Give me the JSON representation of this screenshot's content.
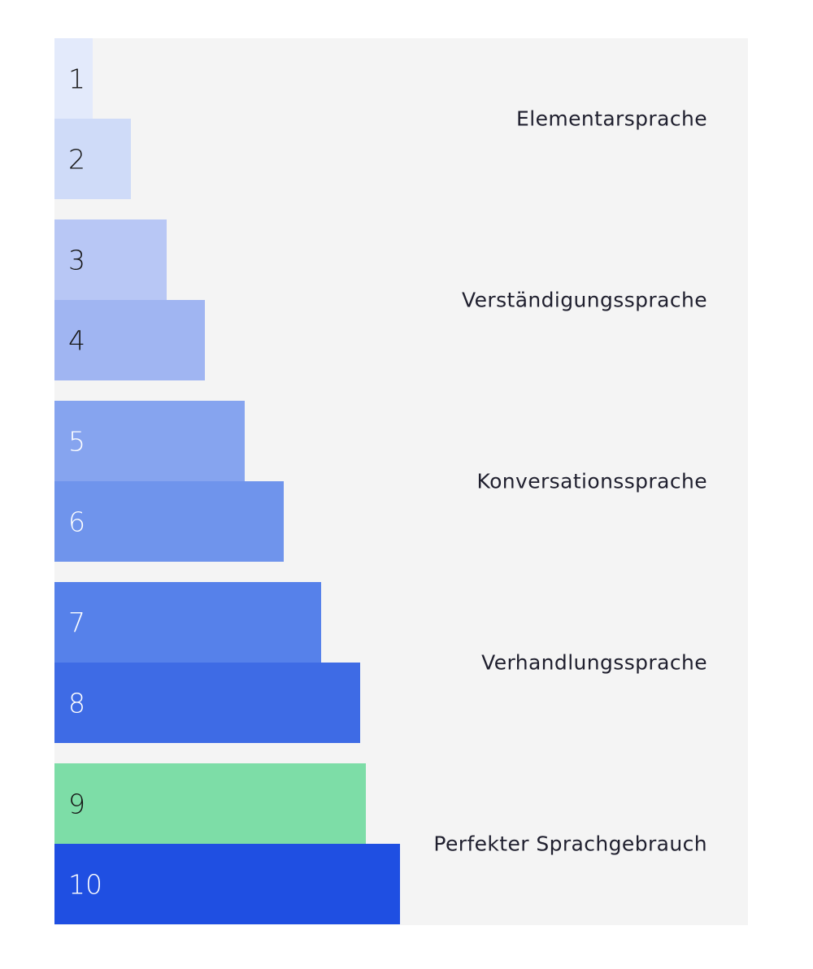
{
  "levels": [
    {
      "number": "1",
      "color": "#e3eafb",
      "text_color": "#161616"
    },
    {
      "number": "2",
      "color": "#cfdbf8",
      "text_color": "#161616"
    },
    {
      "number": "3",
      "color": "#b8c7f5",
      "text_color": "#161616"
    },
    {
      "number": "4",
      "color": "#a0b5f2",
      "text_color": "#161616"
    },
    {
      "number": "5",
      "color": "#86a4ef",
      "text_color": "#ffffff"
    },
    {
      "number": "6",
      "color": "#6f94ec",
      "text_color": "#ffffff"
    },
    {
      "number": "7",
      "color": "#5681ea",
      "text_color": "#ffffff"
    },
    {
      "number": "8",
      "color": "#3e6be5",
      "text_color": "#ffffff"
    },
    {
      "number": "9",
      "color": "#7ddda7",
      "text_color": "#161616"
    },
    {
      "number": "10",
      "color": "#1f4fe2",
      "text_color": "#ffffff"
    }
  ],
  "groups": [
    {
      "label": "Elementarsprache"
    },
    {
      "label": "Verständigungssprache"
    },
    {
      "label": "Konversationssprache"
    },
    {
      "label": "Verhandlungssprache"
    },
    {
      "label": "Perfekter Sprachgebrauch"
    }
  ]
}
